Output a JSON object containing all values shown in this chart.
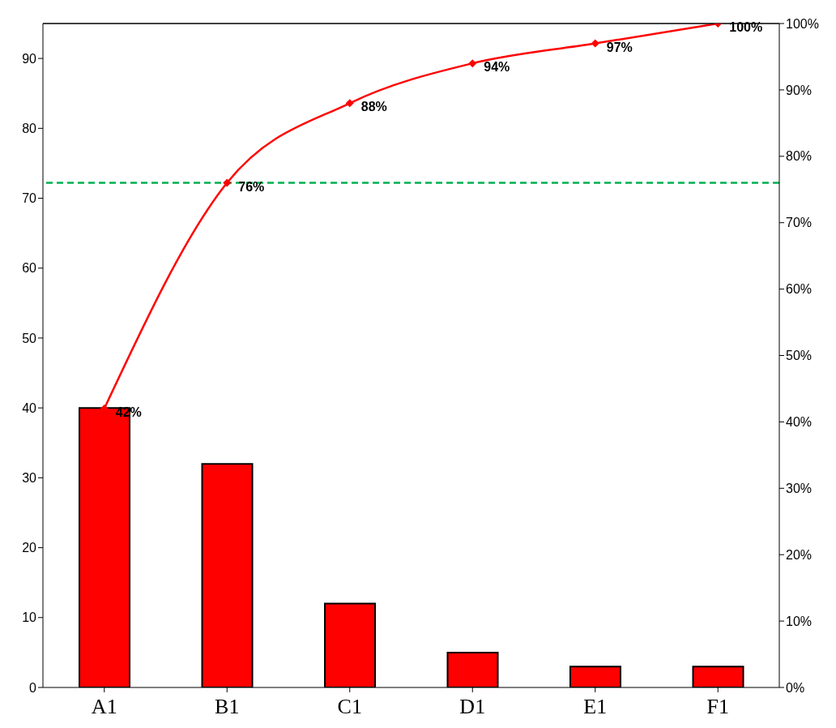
{
  "chart_data": {
    "type": "bar",
    "categories": [
      "A1",
      "B1",
      "C1",
      "D1",
      "E1",
      "F1"
    ],
    "series": [
      {
        "color": "#ff0000",
        "values": [
          40,
          32,
          12,
          5,
          3,
          3
        ]
      },
      {
        "type": "line",
        "axis": "y2",
        "color": "#ff0000",
        "values": [
          42,
          76,
          88,
          94,
          97,
          100
        ],
        "value_labels": [
          "42%",
          "76%",
          "88%",
          "94%",
          "97%",
          "100%"
        ]
      }
    ],
    "marker": "diamond",
    "ylim": [
      0,
      95
    ],
    "yticks": [
      0,
      10,
      20,
      30,
      40,
      50,
      60,
      70,
      80,
      90
    ],
    "y2lim": [
      0,
      100
    ],
    "y2ticks": [
      {
        "value": 0,
        "label": "0%"
      },
      {
        "value": 10,
        "label": "10%"
      },
      {
        "value": 20,
        "label": "20%"
      },
      {
        "value": 30,
        "label": "30%"
      },
      {
        "value": 40,
        "label": "40%"
      },
      {
        "value": 50,
        "label": "50%"
      },
      {
        "value": 60,
        "label": "60%"
      },
      {
        "value": 70,
        "label": "70%"
      },
      {
        "value": 80,
        "label": "80%"
      },
      {
        "value": 90,
        "label": "90%"
      },
      {
        "value": 100,
        "label": "100%"
      }
    ],
    "ref_lines": [
      {
        "axis": "y2",
        "value": 76,
        "color": "#00b050",
        "line_style": "dashed"
      }
    ]
  }
}
